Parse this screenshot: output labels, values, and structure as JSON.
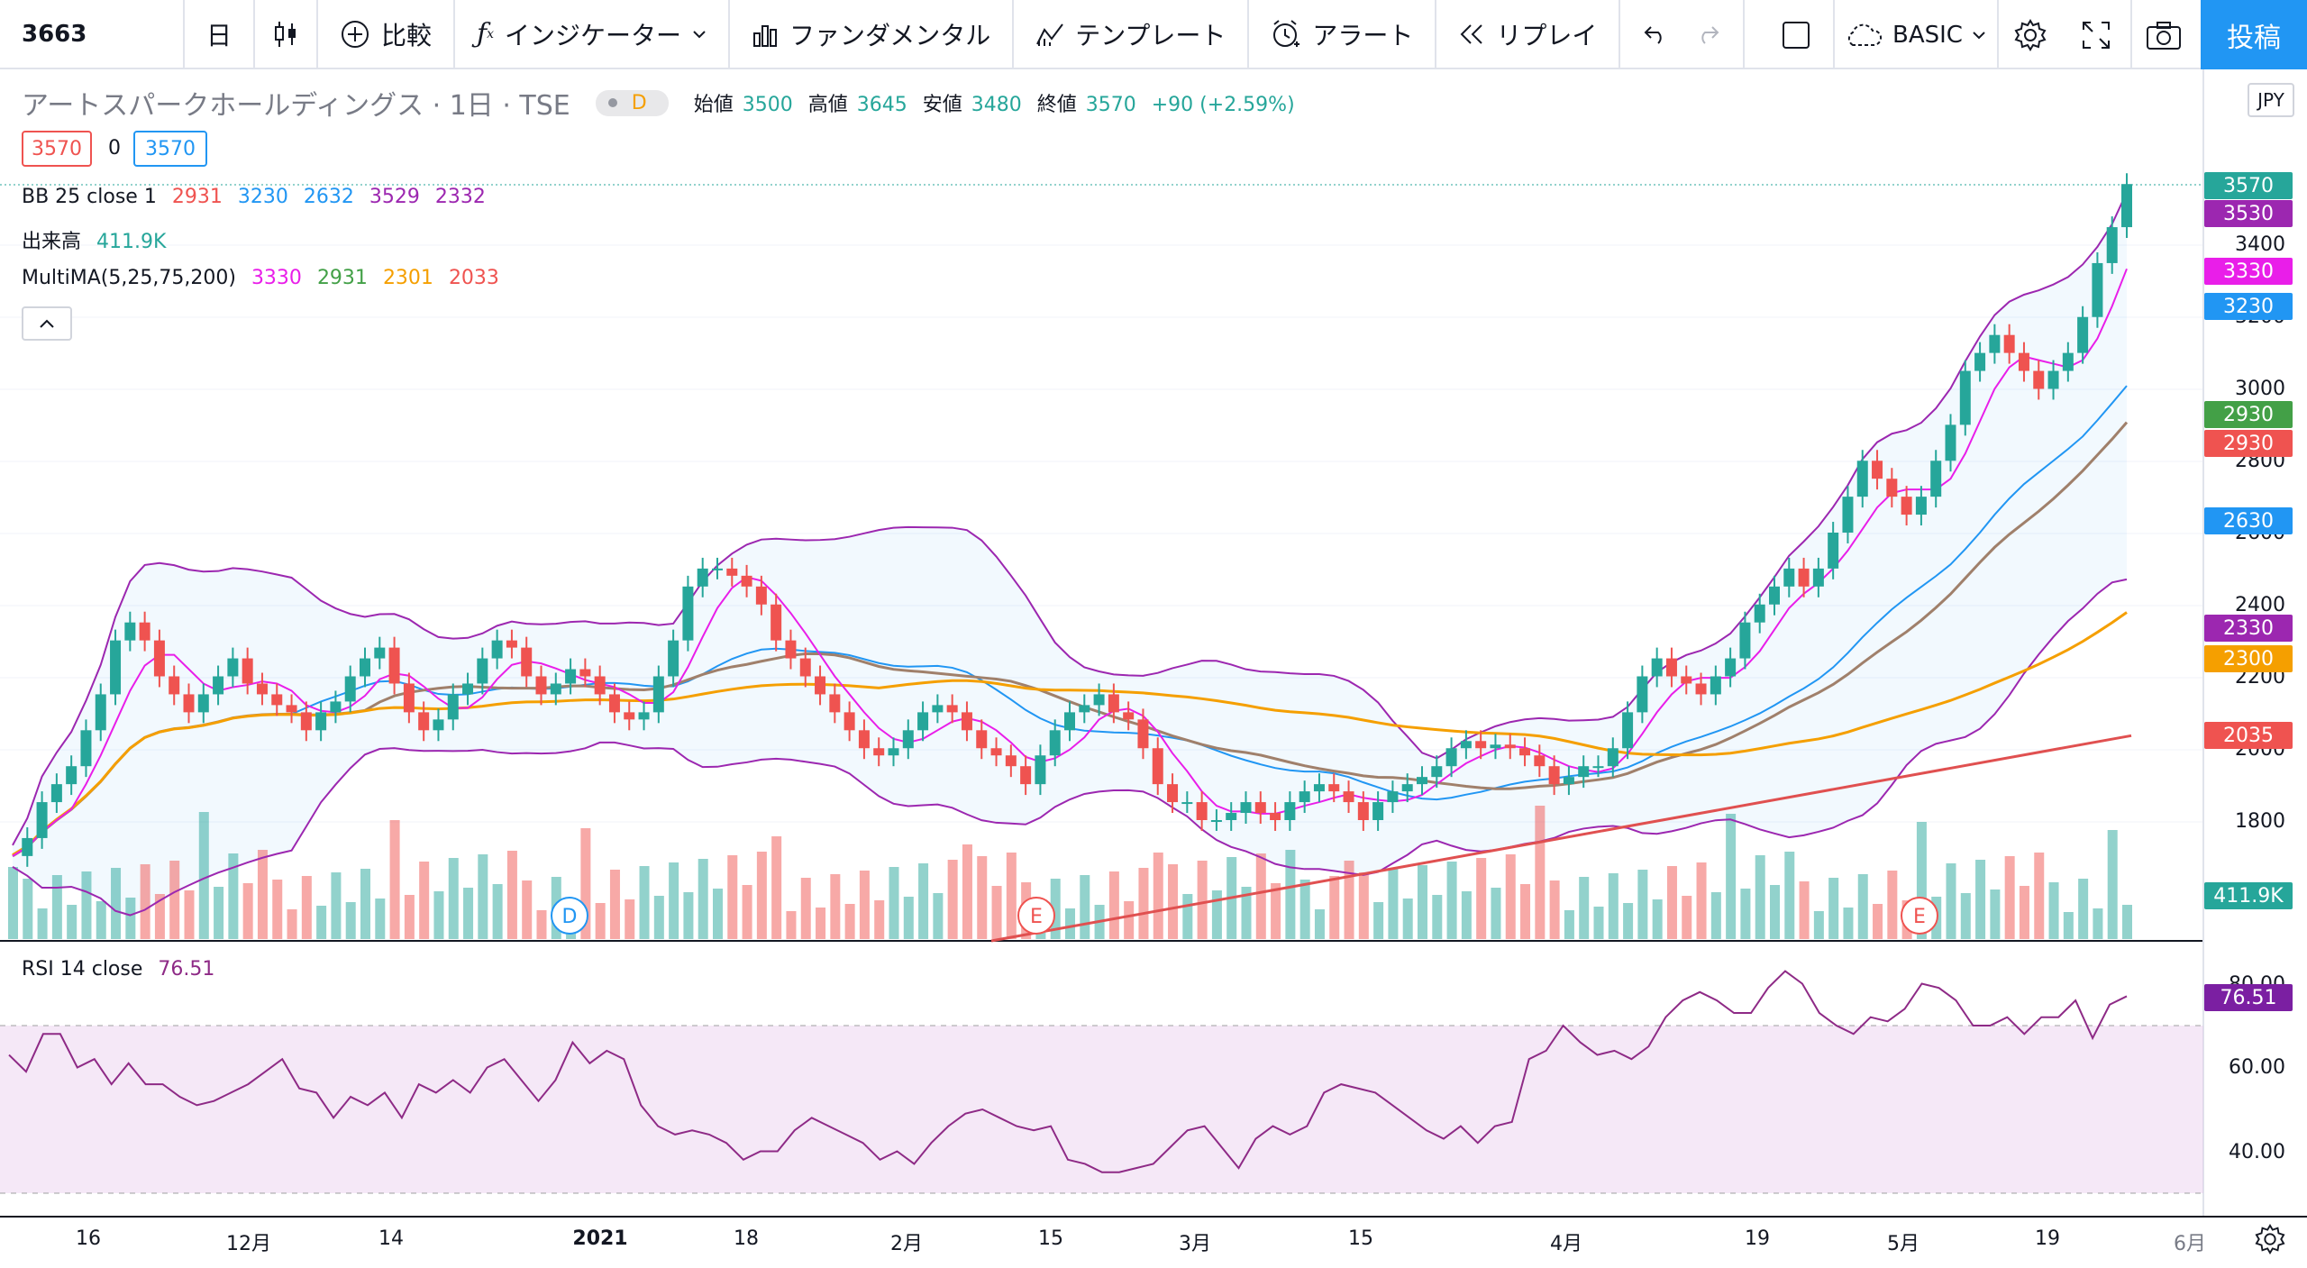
{
  "toolbar": {
    "symbol": "3663",
    "interval": "日",
    "compare": "比較",
    "indicators": "インジケーター",
    "fundamentals": "ファンダメンタル",
    "templates": "テンプレート",
    "alert": "アラート",
    "replay": "リプレイ",
    "layout_name": "BASIC",
    "post": "投稿"
  },
  "header": {
    "title": "アートスパークホールディングス · 1日 · TSE",
    "delay_badge": "D",
    "ohlc": {
      "open_label": "始値",
      "open": "3500",
      "high_label": "高値",
      "high": "3645",
      "low_label": "安値",
      "low": "3480",
      "close_label": "終値",
      "close": "3570",
      "change": "+90 (+2.59%)"
    },
    "bid": "3570",
    "spread": "0",
    "ask": "3570"
  },
  "legends": {
    "bb": {
      "label": "BB 25 close 1",
      "v1": "2931",
      "v2": "3230",
      "v3": "2632",
      "v4": "3529",
      "v5": "2332"
    },
    "volume": {
      "label": "出来高",
      "value": "411.9K"
    },
    "multima": {
      "label": "MultiMA(5,25,75,200)",
      "v1": "3330",
      "v2": "2931",
      "v3": "2301",
      "v4": "2033"
    },
    "rsi": {
      "label": "RSI 14 close",
      "value": "76.51"
    }
  },
  "currency": "JPY",
  "price_axis": {
    "ticks": [
      "3400",
      "3200",
      "3000",
      "2800",
      "2600",
      "2400",
      "2200",
      "2000",
      "1800"
    ]
  },
  "rsi_axis": {
    "ticks": [
      "80.00",
      "60.00",
      "40.00"
    ]
  },
  "time_axis": {
    "ticks": [
      "16",
      "12月",
      "14",
      "2021",
      "18",
      "2月",
      "15",
      "3月",
      "15",
      "4月",
      "19",
      "5月",
      "19",
      "6月"
    ]
  },
  "badges": [
    {
      "text": "3570",
      "color": "#26a69a"
    },
    {
      "text": "3530",
      "color": "#9c27b0"
    },
    {
      "text": "3330",
      "color": "#e91ee9"
    },
    {
      "text": "3230",
      "color": "#2196f3"
    },
    {
      "text": "2930",
      "color": "#43a047"
    },
    {
      "text": "2930",
      "color": "#ef5350"
    },
    {
      "text": "2630",
      "color": "#2196f3"
    },
    {
      "text": "2330",
      "color": "#9c27b0"
    },
    {
      "text": "2300",
      "color": "#f59f00"
    },
    {
      "text": "2035",
      "color": "#ef5350"
    },
    {
      "text": "411.9K",
      "color": "#26a69a"
    },
    {
      "text": "76.51",
      "color": "#7b1fa2"
    }
  ],
  "event_markers": [
    {
      "label": "D",
      "color": "#2196f3"
    },
    {
      "label": "E",
      "color": "#ef5350"
    },
    {
      "label": "E",
      "color": "#ef5350"
    }
  ],
  "colors": {
    "up": "#26a69a",
    "down": "#ef5350",
    "bb_upper": "#9c27b0",
    "bb_basis": "#2196f3",
    "ma5": "#e91ee9",
    "ma25": "#a0806b",
    "ma75": "#f59f00",
    "ma200": "#e05050",
    "rsi": "#8e2a86"
  },
  "chart_data": {
    "type": "candlestick",
    "price_series": [
      1700,
      1750,
      1850,
      1900,
      1950,
      2050,
      2150,
      2300,
      2350,
      2300,
      2200,
      2150,
      2100,
      2150,
      2200,
      2250,
      2180,
      2150,
      2120,
      2100,
      2050,
      2100,
      2130,
      2200,
      2250,
      2280,
      2180,
      2100,
      2050,
      2080,
      2150,
      2180,
      2250,
      2300,
      2280,
      2200,
      2150,
      2180,
      2220,
      2200,
      2150,
      2100,
      2080,
      2100,
      2200,
      2300,
      2450,
      2500,
      2500,
      2480,
      2450,
      2400,
      2300,
      2250,
      2200,
      2150,
      2100,
      2050,
      2000,
      1980,
      2000,
      2050,
      2100,
      2120,
      2100,
      2050,
      2000,
      1980,
      1950,
      1900,
      1980,
      2050,
      2100,
      2120,
      2150,
      2100,
      2080,
      2000,
      1900,
      1850,
      1850,
      1800,
      1800,
      1820,
      1850,
      1820,
      1800,
      1850,
      1880,
      1900,
      1880,
      1850,
      1800,
      1850,
      1880,
      1900,
      1920,
      1950,
      2000,
      2020,
      2000,
      2010,
      2000,
      1980,
      1950,
      1900,
      1920,
      1950,
      1950,
      2000,
      2100,
      2200,
      2250,
      2200,
      2180,
      2150,
      2200,
      2250,
      2350,
      2400,
      2450,
      2500,
      2450,
      2500,
      2600,
      2700,
      2800,
      2750,
      2700,
      2650,
      2700,
      2800,
      2900,
      3050,
      3100,
      3150,
      3100,
      3050,
      3000,
      3050,
      3100,
      3200,
      3350,
      3450,
      3570
    ],
    "rsi_series": [
      63,
      59,
      68,
      68,
      60,
      62,
      56,
      61,
      56,
      56,
      53,
      51,
      52,
      54,
      56,
      59,
      62,
      55,
      54,
      48,
      53,
      51,
      54,
      48,
      56,
      54,
      57,
      54,
      60,
      62,
      57,
      52,
      57,
      66,
      61,
      64,
      62,
      51,
      46,
      44,
      45,
      44,
      42,
      38,
      40,
      40,
      45,
      48,
      46,
      44,
      42,
      38,
      40,
      37,
      42,
      46,
      49,
      50,
      48,
      46,
      45,
      46,
      38,
      37,
      35,
      35,
      36,
      37,
      41,
      45,
      46,
      41,
      36,
      43,
      46,
      44,
      46,
      54,
      56,
      55,
      54,
      51,
      48,
      45,
      43,
      46,
      42,
      46,
      47,
      62,
      64,
      70,
      66,
      63,
      64,
      62,
      65,
      72,
      76,
      78,
      76,
      73,
      73,
      79,
      83,
      80,
      73,
      70,
      68,
      72,
      71,
      74,
      80,
      79,
      76,
      70,
      70,
      72,
      68,
      72,
      72,
      76,
      67,
      75,
      77
    ]
  }
}
